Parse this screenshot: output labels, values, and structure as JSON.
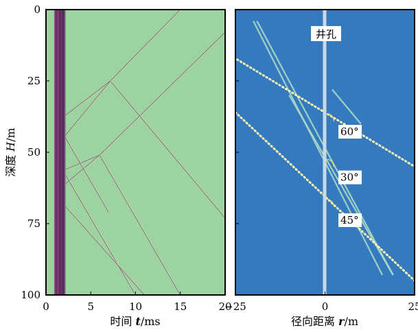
{
  "chart_data": [
    {
      "type": "heatmap",
      "panel": "left",
      "xlabel_parts": [
        "时间 ",
        "t",
        "/ms"
      ],
      "ylabel_parts": [
        "深度 ",
        "H",
        "/m"
      ],
      "xlim": [
        0,
        20
      ],
      "ylim": [
        0,
        100
      ],
      "y_inverted": true,
      "x_ticks": [
        "0",
        "5",
        "10",
        "15",
        "20"
      ],
      "y_ticks": [
        "0",
        "25",
        "50",
        "75",
        "100"
      ],
      "background_color": "#9dd3a1",
      "band_color": "#6b2f6e",
      "direct_wave_band_ms": [
        0.9,
        2.2
      ],
      "wavefronts": [
        {
          "t": [
            2.2,
            7.2
          ],
          "H": [
            37,
            25
          ]
        },
        {
          "t": [
            7.2,
            15.0
          ],
          "H": [
            25,
            0
          ]
        },
        {
          "t": [
            7.2,
            20.0
          ],
          "H": [
            25,
            73
          ]
        },
        {
          "t": [
            2.2,
            7.2
          ],
          "H": [
            44,
            25
          ]
        },
        {
          "t": [
            2.2,
            6.0
          ],
          "H": [
            56,
            51
          ]
        },
        {
          "t": [
            6.0,
            20.0
          ],
          "H": [
            51,
            8
          ]
        },
        {
          "t": [
            6.0,
            15.0
          ],
          "H": [
            51,
            100
          ]
        },
        {
          "t": [
            2.2,
            6.0
          ],
          "H": [
            61,
            51
          ]
        },
        {
          "t": [
            2.2,
            10.0
          ],
          "H": [
            58,
            100
          ]
        },
        {
          "t": [
            2.2,
            11.0
          ],
          "H": [
            69,
            100
          ]
        },
        {
          "t": [
            2.2,
            7.0
          ],
          "H": [
            45,
            71
          ]
        }
      ]
    },
    {
      "type": "heatmap",
      "panel": "right",
      "xlabel_parts": [
        "径向距离 ",
        "r",
        "/m"
      ],
      "xlim": [
        -25,
        25
      ],
      "ylim": [
        0,
        100
      ],
      "y_inverted": true,
      "x_ticks": [
        "−25",
        "0",
        "25"
      ],
      "background_color": "#3579bf",
      "borehole_color": "#c8d9e8",
      "borehole_label": "井孔",
      "fractures": [
        {
          "r": [
            -24.5,
            25
          ],
          "H": [
            17.5,
            55
          ]
        },
        {
          "r": [
            -25,
            25
          ],
          "H": [
            36,
            95
          ]
        }
      ],
      "wavefronts": [
        {
          "r": [
            -20,
            16
          ],
          "H": [
            4,
            93
          ]
        },
        {
          "r": [
            -19,
            19
          ],
          "H": [
            4,
            93
          ]
        },
        {
          "r": [
            -10,
            19
          ],
          "H": [
            30,
            93
          ]
        },
        {
          "r": [
            2,
            10
          ],
          "H": [
            28,
            40
          ]
        }
      ],
      "angle_labels": [
        {
          "text": "60°",
          "r": 7,
          "H": 44
        },
        {
          "text": "30°",
          "r": 7,
          "H": 60
        },
        {
          "text": "45°",
          "r": 7,
          "H": 75
        }
      ],
      "angle_arcs_H": [
        36,
        52,
        66
      ]
    }
  ]
}
